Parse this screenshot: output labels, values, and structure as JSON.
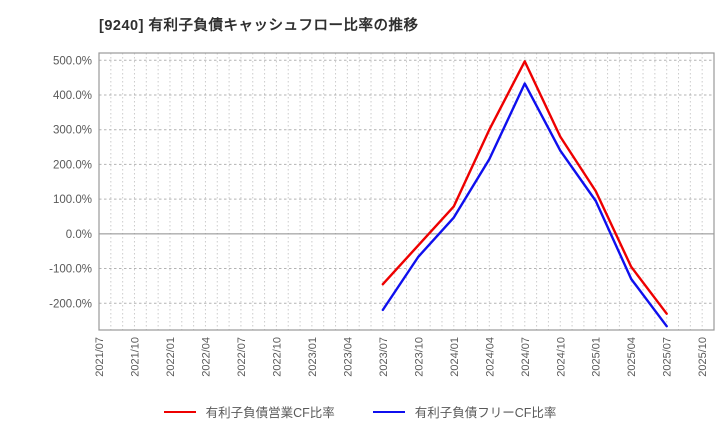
{
  "title": "[9240]  有利子負債キャッシュフロー比率の推移",
  "legend": {
    "items": [
      {
        "label": "有利子負債営業CF比率",
        "color": "#ee0000"
      },
      {
        "label": "有利子負債フリーCF比率",
        "color": "#0f0fee"
      }
    ]
  },
  "chart_data": {
    "type": "line",
    "title": "[9240]  有利子負債キャッシュフロー比率の推移",
    "xlabel": "",
    "ylabel": "",
    "x_tick_labels": [
      "2021/07",
      "2021/10",
      "2022/01",
      "2022/04",
      "2022/07",
      "2022/10",
      "2023/01",
      "2023/04",
      "2023/07",
      "2023/10",
      "2024/01",
      "2024/04",
      "2024/07",
      "2024/10",
      "2025/01",
      "2025/04",
      "2025/07",
      "2025/10"
    ],
    "x_tick_months": [
      0,
      3,
      6,
      9,
      12,
      15,
      18,
      21,
      24,
      27,
      30,
      33,
      36,
      39,
      42,
      45,
      48,
      51
    ],
    "total_months": 52,
    "y_ticks": [
      {
        "label": "500.0%",
        "value": 500
      },
      {
        "label": "400.0%",
        "value": 400
      },
      {
        "label": "300.0%",
        "value": 300
      },
      {
        "label": "200.0%",
        "value": 200
      },
      {
        "label": "100.0%",
        "value": 100
      },
      {
        "label": "0.0%",
        "value": 0
      },
      {
        "label": "-100.0%",
        "value": -100
      },
      {
        "label": "-200.0%",
        "value": -200
      }
    ],
    "ylim": [
      -277,
      521
    ],
    "grid": true,
    "legend_position": "bottom",
    "series": [
      {
        "name": "有利子負債営業CF比率",
        "color": "#ee0000",
        "start_month": 24,
        "step_months": 3,
        "x_labels": [
          "2023/07",
          "2023/10",
          "2024/01",
          "2024/04",
          "2024/07",
          "2024/10",
          "2025/01",
          "2025/04",
          "2025/07"
        ],
        "values": [
          -145,
          -33,
          79,
          300,
          497,
          280,
          123,
          -95,
          -230
        ]
      },
      {
        "name": "有利子負債フリーCF比率",
        "color": "#0f0fee",
        "start_month": 24,
        "step_months": 3,
        "x_labels": [
          "2023/07",
          "2023/10",
          "2024/01",
          "2024/04",
          "2024/07",
          "2024/10",
          "2025/01",
          "2025/04",
          "2025/07"
        ],
        "values": [
          -219,
          -66,
          47,
          215,
          433,
          240,
          95,
          -130,
          -266
        ]
      }
    ],
    "gridline_colors": {
      "minor_vertical": "#cccccc",
      "horizontal": "#b3b3b3",
      "zero_line": "#8c8c8c",
      "border": "#999999"
    }
  }
}
